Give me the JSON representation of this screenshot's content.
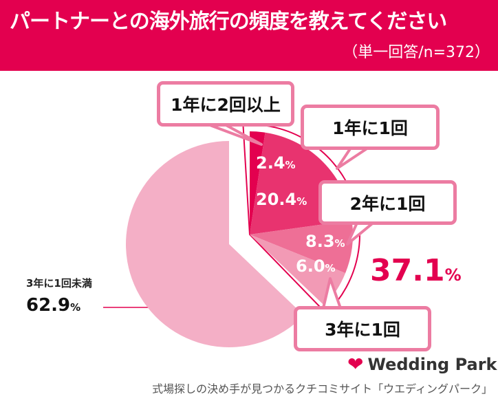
{
  "header": {
    "title": "パートナーとの海外旅行の頻度を教えてください",
    "subtitle": "（単一回答/n=372）"
  },
  "chart_data": {
    "type": "pie",
    "title": "パートナーとの海外旅行の頻度を教えてください",
    "categories": [
      "1年に2回以上",
      "1年に1回",
      "2年に1回",
      "3年に1回",
      "3年に1回未満"
    ],
    "values": [
      2.4,
      20.4,
      8.3,
      6.0,
      62.9
    ],
    "colors": [
      "#e3004f",
      "#e8336f",
      "#ee6f96",
      "#f29ab5",
      "#f4afc6"
    ],
    "group_total": {
      "label_value": "37.1",
      "unit": "%"
    }
  },
  "labels": {
    "p0": "2.4",
    "p1": "20.4",
    "p2": "8.3",
    "p3": "6.0",
    "p4": "62.9",
    "unit": "%",
    "big": "37.1",
    "c4": "3年に1回未満"
  },
  "logo": {
    "text": "Wedding Park"
  },
  "footer": "式場探しの決め手が見つかるクチコミサイト「ウエディングパーク」"
}
